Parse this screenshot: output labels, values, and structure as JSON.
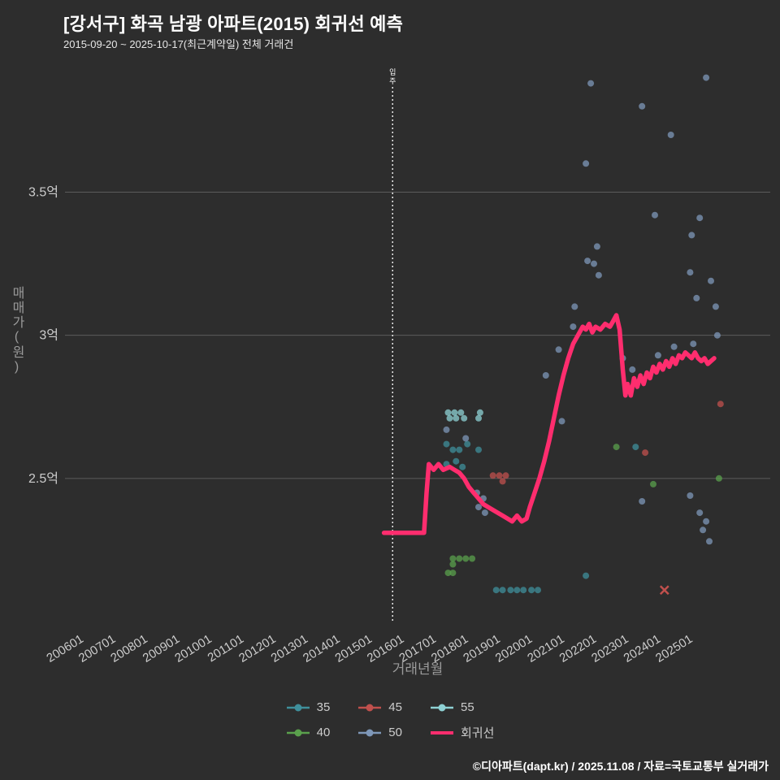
{
  "header": {
    "title": "[강서구] 화곡 남광 아파트(2015) 회귀선 예측",
    "subtitle": "2015-09-20 ~ 2025-10-17(최근계약일) 전체 거래건"
  },
  "footer": {
    "credit": "©디아파트(dapt.kr) / 2025.11.08 / 자료=국토교통부 실거래가"
  },
  "colors": {
    "background": "#2d2d2d",
    "grid": "#5c5c5c",
    "tick_text": "#cccccc",
    "axis_title": "#9a9a9a",
    "annotation_text": "#ffffff",
    "dotted_line": "#e8e8e8"
  },
  "chart_data": {
    "type": "scatter",
    "title": "[강서구] 화곡 남광 아파트(2015) 회귀선 예측",
    "xlabel": "거래년월",
    "ylabel": "매매가(원)",
    "x_unit": "year_decimal",
    "y_unit": "억원",
    "xlim": [
      2005.5,
      2027.5
    ],
    "ylim": [
      2.0,
      3.93
    ],
    "grid": "horizontal_only",
    "legend_position": "bottom_center",
    "x_ticks": [
      "200601",
      "200701",
      "200801",
      "200901",
      "201001",
      "201101",
      "201201",
      "201301",
      "201401",
      "201501",
      "201601",
      "201701",
      "201801",
      "201901",
      "202001",
      "202101",
      "202201",
      "202301",
      "202401",
      "202501"
    ],
    "x_tick_start_year": 2006,
    "y_ticks": [
      {
        "value": 2.5,
        "label": "2.5억"
      },
      {
        "value": 3.0,
        "label": "3억"
      },
      {
        "value": 3.5,
        "label": "3.5억"
      }
    ],
    "annotation": {
      "label": "입주",
      "x": 2015.72
    },
    "series": [
      {
        "name": "35",
        "color": "#3f8f9b",
        "points": [
          [
            2017.4,
            2.62
          ],
          [
            2017.6,
            2.6
          ],
          [
            2017.8,
            2.6
          ],
          [
            2018.05,
            2.62
          ],
          [
            2018.4,
            2.6
          ],
          [
            2017.4,
            2.55
          ],
          [
            2017.7,
            2.56
          ],
          [
            2017.9,
            2.54
          ],
          [
            2018.95,
            2.11
          ],
          [
            2019.15,
            2.11
          ],
          [
            2019.4,
            2.11
          ],
          [
            2019.6,
            2.11
          ],
          [
            2019.8,
            2.11
          ],
          [
            2020.05,
            2.11
          ],
          [
            2020.25,
            2.11
          ],
          [
            2021.75,
            2.16
          ],
          [
            2023.3,
            2.61
          ]
        ]
      },
      {
        "name": "40",
        "color": "#5aa04c",
        "points": [
          [
            2017.6,
            2.22
          ],
          [
            2017.8,
            2.22
          ],
          [
            2018.0,
            2.22
          ],
          [
            2018.2,
            2.22
          ],
          [
            2017.6,
            2.2
          ],
          [
            2017.45,
            2.17
          ],
          [
            2017.6,
            2.17
          ],
          [
            2022.7,
            2.61
          ],
          [
            2023.85,
            2.48
          ],
          [
            2025.9,
            2.5
          ]
        ]
      },
      {
        "name": "45",
        "color": "#c0504d",
        "points": [
          [
            2018.85,
            2.51
          ],
          [
            2019.05,
            2.51
          ],
          [
            2019.25,
            2.51
          ],
          [
            2019.15,
            2.49
          ],
          [
            2023.6,
            2.59
          ],
          [
            2025.95,
            2.76
          ]
        ],
        "x_markers": [
          [
            2024.2,
            2.11
          ]
        ]
      },
      {
        "name": "50",
        "color": "#7e97b8",
        "points": [
          [
            2021.9,
            3.88
          ],
          [
            2025.5,
            3.9
          ],
          [
            2023.5,
            3.8
          ],
          [
            2024.4,
            3.7
          ],
          [
            2021.75,
            3.6
          ],
          [
            2023.9,
            3.42
          ],
          [
            2025.3,
            3.41
          ],
          [
            2025.05,
            3.35
          ],
          [
            2022.1,
            3.31
          ],
          [
            2021.8,
            3.26
          ],
          [
            2022.0,
            3.25
          ],
          [
            2022.15,
            3.21
          ],
          [
            2025.0,
            3.22
          ],
          [
            2025.65,
            3.19
          ],
          [
            2025.2,
            3.13
          ],
          [
            2025.8,
            3.1
          ],
          [
            2021.4,
            3.1
          ],
          [
            2021.35,
            3.03
          ],
          [
            2025.85,
            3.0
          ],
          [
            2020.9,
            2.95
          ],
          [
            2020.5,
            2.86
          ],
          [
            2021.0,
            2.7
          ],
          [
            2022.9,
            2.92
          ],
          [
            2023.2,
            2.88
          ],
          [
            2024.0,
            2.93
          ],
          [
            2024.5,
            2.96
          ],
          [
            2025.1,
            2.97
          ],
          [
            2017.4,
            2.67
          ],
          [
            2018.0,
            2.64
          ],
          [
            2018.35,
            2.45
          ],
          [
            2018.55,
            2.43
          ],
          [
            2018.4,
            2.4
          ],
          [
            2018.6,
            2.38
          ],
          [
            2023.5,
            2.42
          ],
          [
            2025.0,
            2.44
          ],
          [
            2025.3,
            2.38
          ],
          [
            2025.5,
            2.35
          ],
          [
            2025.4,
            2.32
          ],
          [
            2025.6,
            2.28
          ]
        ]
      },
      {
        "name": "55",
        "color": "#8ed1d4",
        "points": [
          [
            2017.45,
            2.73
          ],
          [
            2017.65,
            2.73
          ],
          [
            2017.85,
            2.73
          ],
          [
            2018.45,
            2.73
          ],
          [
            2017.5,
            2.71
          ],
          [
            2017.7,
            2.71
          ],
          [
            2017.95,
            2.71
          ],
          [
            2018.4,
            2.71
          ]
        ]
      }
    ],
    "regression": {
      "name": "회귀선",
      "color": "#ff2d6e",
      "points": [
        [
          2015.45,
          2.31
        ],
        [
          2016.7,
          2.31
        ],
        [
          2016.78,
          2.45
        ],
        [
          2016.85,
          2.55
        ],
        [
          2017.0,
          2.53
        ],
        [
          2017.15,
          2.55
        ],
        [
          2017.3,
          2.53
        ],
        [
          2017.5,
          2.54
        ],
        [
          2017.65,
          2.53
        ],
        [
          2017.8,
          2.52
        ],
        [
          2017.95,
          2.5
        ],
        [
          2018.1,
          2.47
        ],
        [
          2018.25,
          2.45
        ],
        [
          2018.4,
          2.43
        ],
        [
          2018.55,
          2.41
        ],
        [
          2018.7,
          2.4
        ],
        [
          2018.85,
          2.39
        ],
        [
          2019.0,
          2.38
        ],
        [
          2019.15,
          2.37
        ],
        [
          2019.3,
          2.36
        ],
        [
          2019.45,
          2.35
        ],
        [
          2019.6,
          2.37
        ],
        [
          2019.75,
          2.35
        ],
        [
          2019.9,
          2.36
        ],
        [
          2020.0,
          2.4
        ],
        [
          2020.15,
          2.45
        ],
        [
          2020.3,
          2.5
        ],
        [
          2020.45,
          2.56
        ],
        [
          2020.6,
          2.63
        ],
        [
          2020.75,
          2.71
        ],
        [
          2020.9,
          2.79
        ],
        [
          2021.05,
          2.86
        ],
        [
          2021.2,
          2.92
        ],
        [
          2021.35,
          2.97
        ],
        [
          2021.5,
          3.0
        ],
        [
          2021.65,
          3.03
        ],
        [
          2021.75,
          3.02
        ],
        [
          2021.85,
          3.04
        ],
        [
          2021.95,
          3.01
        ],
        [
          2022.05,
          3.03
        ],
        [
          2022.2,
          3.02
        ],
        [
          2022.35,
          3.04
        ],
        [
          2022.5,
          3.03
        ],
        [
          2022.6,
          3.05
        ],
        [
          2022.7,
          3.07
        ],
        [
          2022.8,
          3.02
        ],
        [
          2022.9,
          2.88
        ],
        [
          2022.98,
          2.79
        ],
        [
          2023.05,
          2.83
        ],
        [
          2023.15,
          2.79
        ],
        [
          2023.25,
          2.85
        ],
        [
          2023.35,
          2.82
        ],
        [
          2023.45,
          2.86
        ],
        [
          2023.55,
          2.83
        ],
        [
          2023.65,
          2.87
        ],
        [
          2023.75,
          2.85
        ],
        [
          2023.85,
          2.89
        ],
        [
          2023.95,
          2.87
        ],
        [
          2024.05,
          2.9
        ],
        [
          2024.15,
          2.88
        ],
        [
          2024.25,
          2.91
        ],
        [
          2024.35,
          2.89
        ],
        [
          2024.45,
          2.92
        ],
        [
          2024.55,
          2.9
        ],
        [
          2024.65,
          2.93
        ],
        [
          2024.75,
          2.92
        ],
        [
          2024.85,
          2.94
        ],
        [
          2024.95,
          2.93
        ],
        [
          2025.05,
          2.92
        ],
        [
          2025.15,
          2.94
        ],
        [
          2025.25,
          2.92
        ],
        [
          2025.35,
          2.91
        ],
        [
          2025.45,
          2.92
        ],
        [
          2025.55,
          2.9
        ],
        [
          2025.65,
          2.91
        ],
        [
          2025.75,
          2.92
        ]
      ]
    },
    "legend_order": [
      "35",
      "45",
      "55",
      "40",
      "50",
      "회귀선"
    ]
  }
}
